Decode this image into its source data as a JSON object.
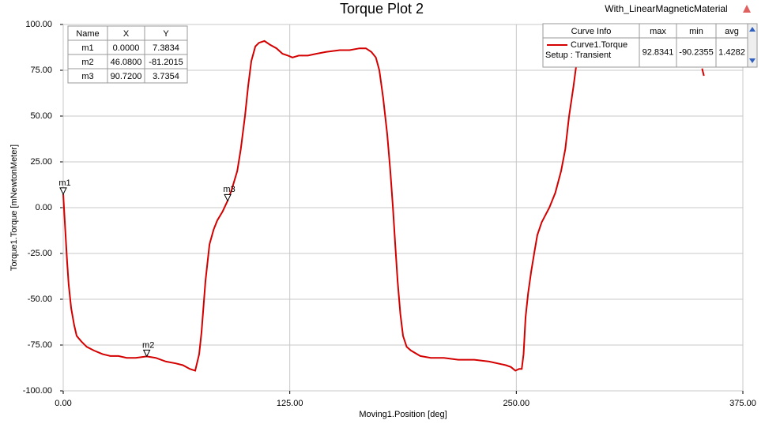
{
  "chart_data": {
    "type": "line",
    "title": "Torque Plot 2",
    "subtitle": "With_LinearMagneticMaterial",
    "x_label": "Moving1.Position [deg]",
    "y_label": "Torque1.Torque [mNewtonMeter]",
    "xlim": [
      0,
      375
    ],
    "ylim": [
      -100,
      100
    ],
    "xticks": [
      {
        "value": 0,
        "label": "0.00"
      },
      {
        "value": 125,
        "label": "125.00"
      },
      {
        "value": 250,
        "label": "250.00"
      },
      {
        "value": 375,
        "label": "375.00"
      }
    ],
    "yticks": [
      {
        "value": -100,
        "label": "-100.00"
      },
      {
        "value": -75,
        "label": "-75.00"
      },
      {
        "value": -50,
        "label": "-50.00"
      },
      {
        "value": -25,
        "label": "-25.00"
      },
      {
        "value": 0,
        "label": "0.00"
      },
      {
        "value": 25,
        "label": "25.00"
      },
      {
        "value": 50,
        "label": "50.00"
      },
      {
        "value": 75,
        "label": "75.00"
      },
      {
        "value": 100,
        "label": "100.00"
      }
    ],
    "grid": true,
    "x": [
      0,
      1,
      2.2,
      3,
      4.4,
      6,
      7.4,
      10,
      13,
      17,
      21.8,
      26,
      30.5,
      35,
      40,
      46.08,
      51,
      56.7,
      62,
      66,
      69.8,
      72.8,
      75,
      76.3,
      78.5,
      80.7,
      83,
      85,
      88,
      90.7,
      93,
      96,
      98,
      100.3,
      102,
      103.8,
      106,
      108,
      111,
      114,
      117.7,
      121,
      124,
      126.5,
      130,
      135,
      139.6,
      145,
      152.6,
      158,
      163.5,
      167,
      170,
      172.5,
      174.4,
      176.5,
      178.8,
      180.5,
      181.9,
      183.2,
      184.5,
      186,
      187.5,
      189.5,
      191.9,
      197,
      202.8,
      210,
      218,
      226.8,
      235,
      244.2,
      247,
      249.5,
      251.5,
      253,
      254,
      255.1,
      256.5,
      258.2,
      260,
      261.6,
      264,
      268.2,
      271.5,
      274.7,
      277,
      279.1,
      281.5,
      283.4,
      285.6,
      300,
      352.5,
      353.5
    ],
    "series": [
      {
        "name": "Curve1.Torque",
        "color": "#d40000",
        "values": [
          7.3834,
          -10,
          -30,
          -42,
          -55,
          -64,
          -70,
          -73,
          -76,
          -78,
          -80,
          -81,
          -81,
          -82,
          -82,
          -81.2015,
          -82,
          -84,
          -85,
          -86,
          -88,
          -89,
          -80,
          -68,
          -40,
          -20,
          -12,
          -7,
          -2,
          3.7354,
          10,
          20,
          32,
          50,
          66,
          80,
          88,
          90,
          91,
          89,
          87,
          84,
          83,
          82,
          83,
          83,
          84,
          85,
          86,
          86,
          87,
          87,
          85,
          82,
          75,
          60,
          40,
          20,
          0,
          -20,
          -40,
          -58,
          -70,
          -76,
          -78,
          -81,
          -82,
          -82,
          -83,
          -83,
          -84,
          -86,
          -87,
          -89,
          -88,
          -88,
          -80,
          -60,
          -47,
          -35,
          -24,
          -15,
          -8,
          0,
          8,
          20,
          32,
          50,
          66,
          80,
          92,
          null,
          76,
          72
        ]
      }
    ],
    "marker_table": {
      "headers": [
        "Name",
        "X",
        "Y"
      ],
      "rows": [
        {
          "name": "m1",
          "x": {
            "value": 0,
            "label": "0.0000"
          },
          "y": 7.3834
        },
        {
          "name": "m2",
          "x": {
            "value": 46.08,
            "label": "46.0800"
          },
          "y": -81.2015
        },
        {
          "name": "m3",
          "x": {
            "value": 90.72,
            "label": "90.7200"
          },
          "y": 3.7354
        }
      ]
    },
    "curve_info": {
      "headers": [
        "Curve Info",
        "max",
        "min",
        "avg"
      ],
      "setup": "Setup : Transient",
      "max": 92.8341,
      "min": -90.2355,
      "avg": 1.4282
    }
  }
}
